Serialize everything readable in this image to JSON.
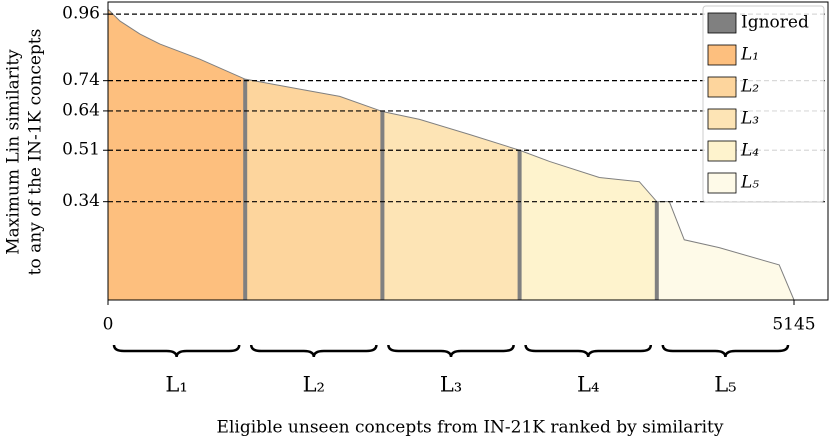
{
  "chart_data": {
    "type": "area",
    "ylabel": [
      "Maximum Lin similarity",
      "to any of the IN-1K concepts"
    ],
    "xlabel": "Eligible unseen concepts from IN-21K ranked by similarity",
    "x": [
      0,
      90,
      240,
      390,
      689,
      1029,
      1438,
      1738,
      2058,
      2337,
      2712,
      3087,
      3311,
      3685,
      3985,
      4116,
      4210,
      4322,
      4584,
      5034,
      5145
    ],
    "values": [
      0.976,
      0.937,
      0.894,
      0.861,
      0.811,
      0.745,
      0.712,
      0.688,
      0.638,
      0.612,
      0.562,
      0.51,
      0.473,
      0.42,
      0.406,
      0.34,
      0.34,
      0.214,
      0.188,
      0.131,
      0.015
    ],
    "line_color": "#808080",
    "xlim": [
      0,
      5400
    ],
    "ylim": [
      0.015,
      1.0
    ],
    "xticks": [
      0,
      5145
    ],
    "yticks": [
      0.34,
      0.51,
      0.64,
      0.74,
      0.96
    ],
    "grid": true,
    "grid_style": "dashed",
    "legend": "upper right",
    "ignored": {
      "name": "Ignored",
      "color": "#808080",
      "x": [
        1029,
        2058,
        3087,
        4116
      ]
    },
    "series": [
      {
        "name": "L₁",
        "color": "#fdbf7e"
      },
      {
        "name": "L₂",
        "color": "#fdd59d"
      },
      {
        "name": "L₃",
        "color": "#fde4b5"
      },
      {
        "name": "L₄",
        "color": "#fef3cd"
      },
      {
        "name": "L₅",
        "color": "#fefae8"
      }
    ]
  }
}
